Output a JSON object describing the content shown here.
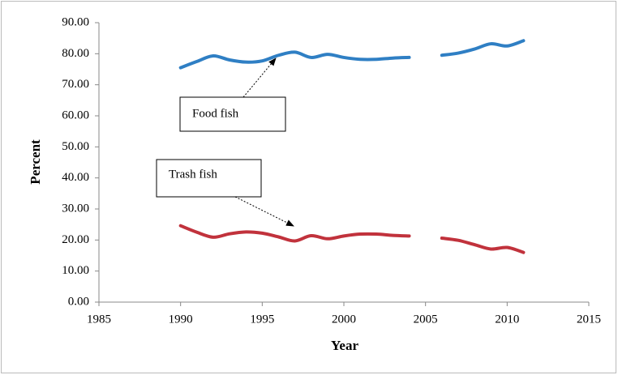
{
  "chart_data": {
    "type": "line",
    "x_label": "Year",
    "y_label": "Percent",
    "x": [
      1990,
      1991,
      1992,
      1993,
      1994,
      1995,
      1996,
      1997,
      1998,
      1999,
      2000,
      2001,
      2002,
      2003,
      2004,
      2005,
      2006,
      2007,
      2008,
      2009,
      2010,
      2011
    ],
    "series": [
      {
        "name": "Food fish",
        "color": "#2f7fc4",
        "values": [
          75.5,
          77.5,
          79.3,
          78.0,
          77.3,
          77.7,
          79.5,
          80.5,
          78.8,
          79.8,
          78.8,
          78.2,
          78.2,
          78.6,
          78.8,
          null,
          79.5,
          80.2,
          81.5,
          83.2,
          82.5,
          84.2
        ]
      },
      {
        "name": "Trash fish",
        "color": "#c1323c",
        "values": [
          24.6,
          22.5,
          20.9,
          22.0,
          22.6,
          22.2,
          21.0,
          19.7,
          21.4,
          20.4,
          21.3,
          21.9,
          21.9,
          21.5,
          21.3,
          null,
          20.6,
          19.9,
          18.5,
          17.1,
          17.6,
          16.0
        ]
      }
    ],
    "xlim": [
      1985,
      2015
    ],
    "xticks": [
      1985,
      1990,
      1995,
      2000,
      2005,
      2010,
      2015
    ],
    "ylim": [
      0,
      90
    ],
    "yticks": [
      {
        "value": 0,
        "label": "0.00"
      },
      {
        "value": 10,
        "label": "10.00"
      },
      {
        "value": 20,
        "label": "20.00"
      },
      {
        "value": 30,
        "label": "30.00"
      },
      {
        "value": 40,
        "label": "40.00"
      },
      {
        "value": 50,
        "label": "50.00"
      },
      {
        "value": 60,
        "label": "60.00"
      },
      {
        "value": 70,
        "label": "70.00"
      },
      {
        "value": 80,
        "label": "80.00"
      },
      {
        "value": 90,
        "label": "90.00"
      }
    ],
    "grid": false
  }
}
